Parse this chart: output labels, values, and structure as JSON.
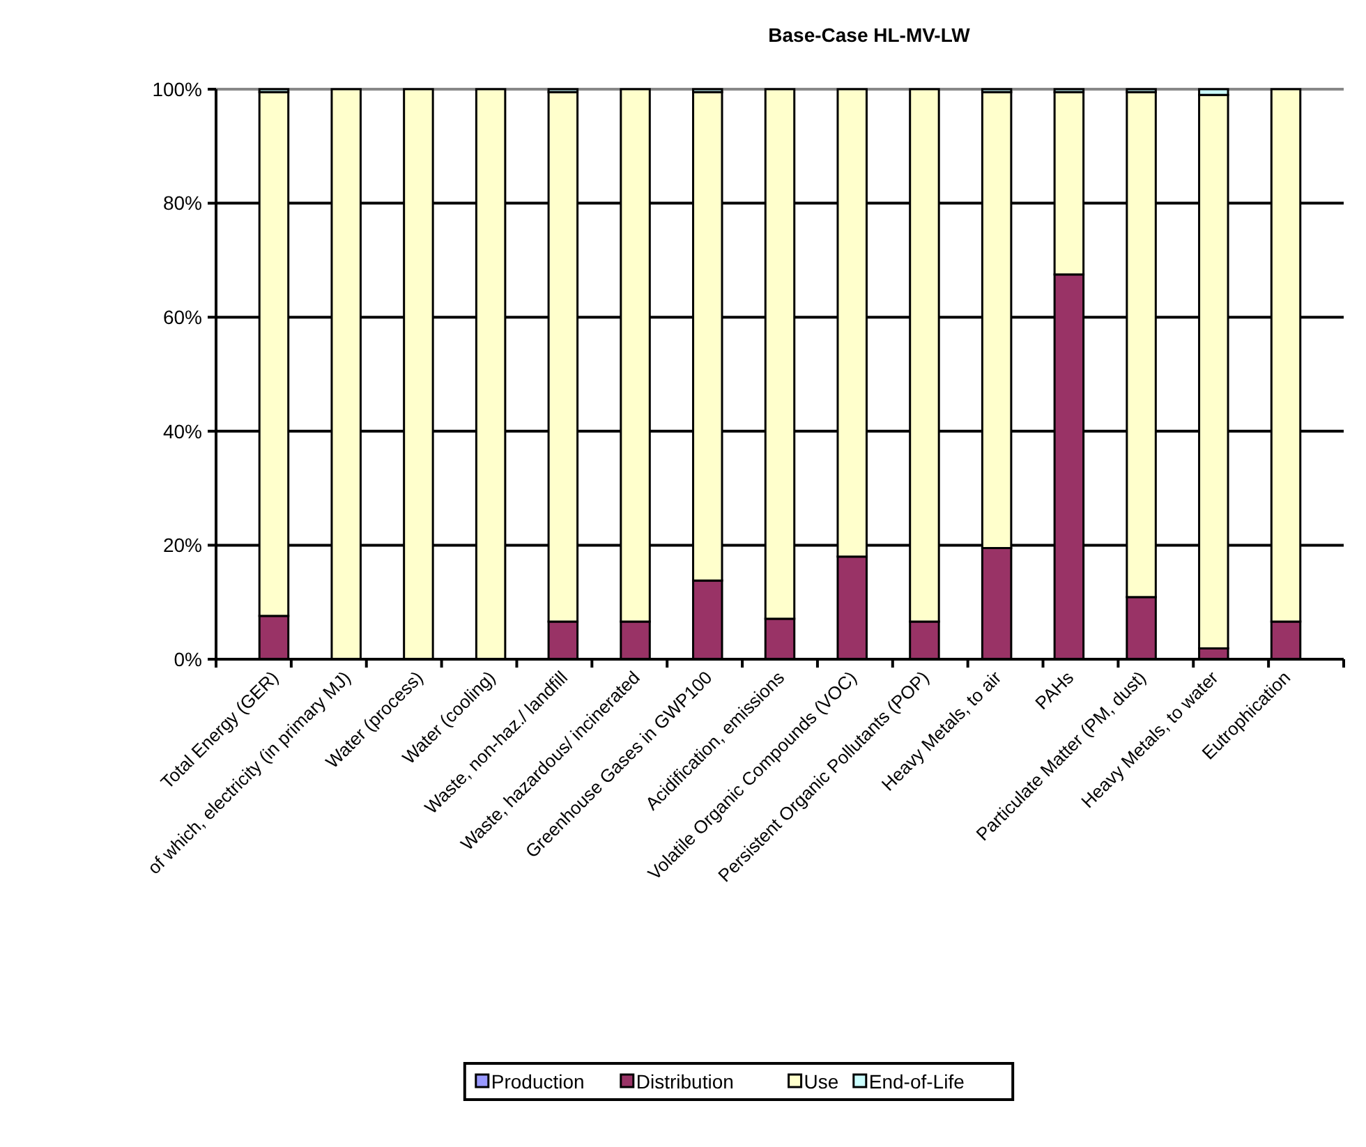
{
  "chart_data": {
    "type": "bar",
    "stacked": true,
    "title": "Base-Case HL-MV-LW",
    "categories": [
      "Total Energy (GER)",
      "of which, electricity (in primary MJ)",
      "Water (process)",
      "Water (cooling)",
      "Waste, non-haz./ landfill",
      "Waste, hazardous/ incinerated",
      "Greenhouse Gases in GWP100",
      "Acidification, emissions",
      "Volatile Organic Compounds (VOC)",
      "Persistent Organic Pollutants (POP)",
      "Heavy Metals, to air",
      "PAHs",
      "Particulate Matter (PM, dust)",
      "Heavy Metals, to water",
      "Eutrophication"
    ],
    "series": [
      {
        "name": "Production",
        "color": "#9999ff",
        "values": [
          0,
          0,
          0,
          0,
          0,
          0,
          0,
          0,
          0,
          0,
          0,
          0,
          0,
          0,
          0
        ]
      },
      {
        "name": "Distribution",
        "color": "#993366",
        "values": [
          7.6,
          0,
          0,
          0,
          6.6,
          6.6,
          13.8,
          7.1,
          18,
          6.6,
          19.5,
          67.5,
          10.9,
          1.9,
          6.6
        ]
      },
      {
        "name": "Use",
        "color": "#ffffcc",
        "values": [
          91.9,
          100,
          100,
          100,
          92.9,
          93.4,
          85.7,
          92.9,
          82,
          93.4,
          80,
          32,
          88.6,
          97.1,
          93.4
        ]
      },
      {
        "name": "End-of-Life",
        "color": "#ccffff",
        "values": [
          0.5,
          0,
          0,
          0,
          0.5,
          0,
          0.5,
          0,
          0,
          0,
          0.5,
          0.5,
          0.5,
          1,
          0
        ]
      }
    ],
    "ylim": [
      0,
      100
    ],
    "yticks": [
      {
        "value": 0,
        "label": "0%"
      },
      {
        "value": 20,
        "label": "20%"
      },
      {
        "value": 40,
        "label": "40%"
      },
      {
        "value": 60,
        "label": "60%"
      },
      {
        "value": 80,
        "label": "80%"
      },
      {
        "value": 100,
        "label": "100%"
      }
    ],
    "grid": "y",
    "legend": "bottom"
  }
}
